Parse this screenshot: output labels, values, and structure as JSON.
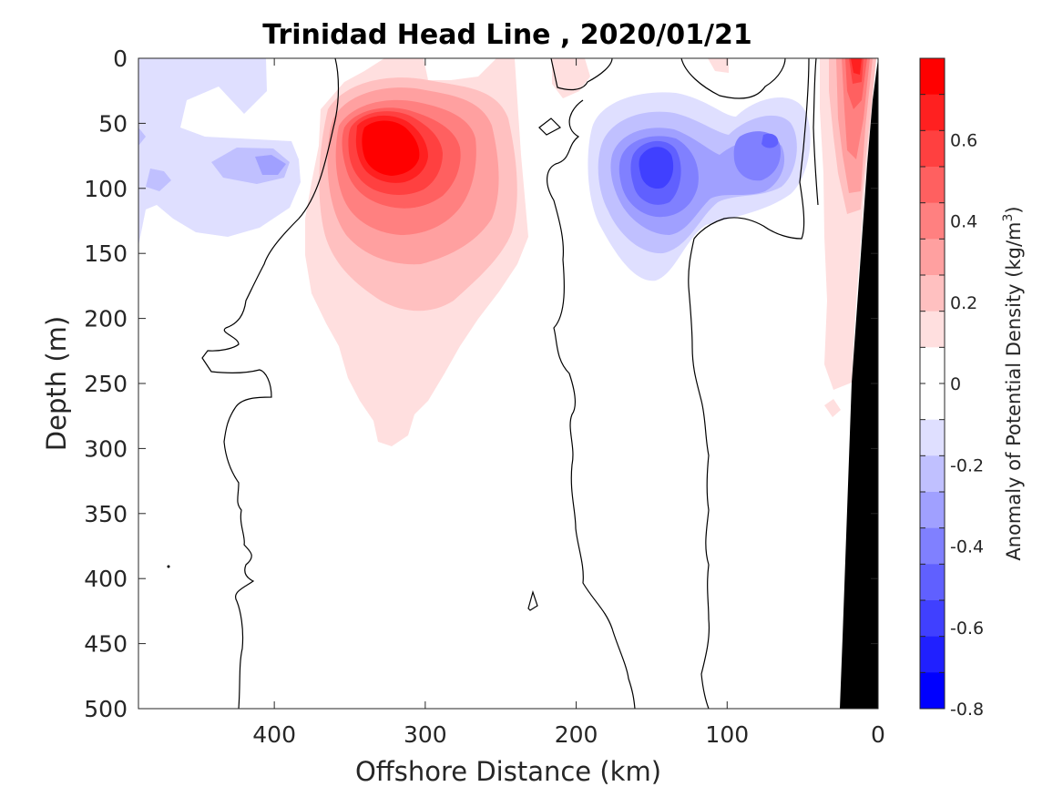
{
  "chart_data": {
    "type": "contour",
    "title": "Trinidad Head Line , 2020/01/21",
    "xlabel": "Offshore Distance (km)",
    "ylabel": "Depth (m)",
    "xlim": [
      490,
      0
    ],
    "ylim": [
      0,
      500
    ],
    "x_reversed": true,
    "y_reversed": true,
    "x_ticks": [
      400,
      300,
      200,
      100,
      0
    ],
    "y_ticks": [
      0,
      50,
      100,
      150,
      200,
      250,
      300,
      350,
      400,
      450,
      500
    ],
    "colorbar": {
      "label": "Anomaly of Potential Density (kg/m",
      "label_superscript": "3",
      "label_end": ")",
      "range": [
        -0.8,
        0.8
      ],
      "step": 0.1,
      "tick_labels": [
        "0.6",
        "0.4",
        "0.2",
        "0",
        "-0.2",
        "-0.4",
        "-0.6",
        "-0.8"
      ],
      "tick_values": [
        0.6,
        0.4,
        0.2,
        0,
        -0.2,
        -0.4,
        -0.6,
        -0.8
      ],
      "colors": [
        "#ff0000",
        "#ff2020",
        "#ff4040",
        "#ff6060",
        "#ff8080",
        "#ffa0a0",
        "#ffc0c0",
        "#ffdfdf",
        "#ffffff",
        "#ffffff",
        "#dfdfff",
        "#c0c0ff",
        "#a0a0ff",
        "#8080ff",
        "#6060ff",
        "#4040ff",
        "#2020ff",
        "#0000ff"
      ]
    },
    "features": [
      {
        "name": "offshore-positive-core",
        "sign": "positive",
        "peak_anomaly": 0.8,
        "center_distance_km": 320,
        "center_depth_m": 75
      },
      {
        "name": "negative-eddy-offshore",
        "sign": "negative",
        "peak_anomaly": -0.3,
        "center_distance_km": 420,
        "center_depth_m": 80
      },
      {
        "name": "negative-eddy-core",
        "sign": "negative",
        "peak_anomaly": -0.6,
        "center_distance_km": 145,
        "center_depth_m": 80
      },
      {
        "name": "negative-eddy-secondary",
        "sign": "negative",
        "peak_anomaly": -0.4,
        "center_distance_km": 70,
        "center_depth_m": 60
      },
      {
        "name": "nearshore-positive",
        "sign": "positive",
        "peak_anomaly": 0.7,
        "center_distance_km": 18,
        "center_depth_m": 20
      }
    ],
    "zero_contours": 4,
    "bathymetry": "black wedge on the shelf, from 0 km at the surface to about 25 km at 500 m"
  }
}
